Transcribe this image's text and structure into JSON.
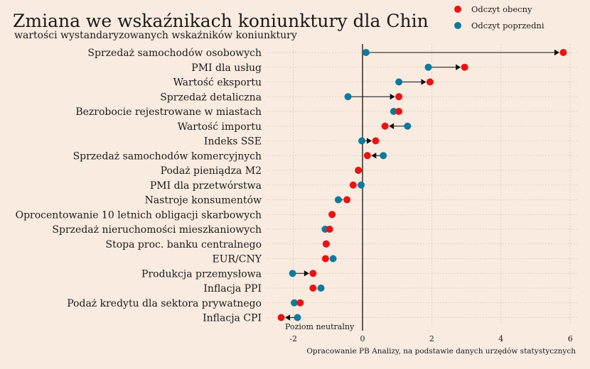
{
  "chart_data": {
    "type": "dumbbell",
    "title": "Zmiana we wskaźnikach koniunktury dla Chin",
    "subtitle": "wartości wystandaryzowanych wskaźników koniunktury",
    "source": "Opracowanie PB Analizy, na podstawie danych urzędów statystycznych",
    "neutral_label": "Poziom neutralny",
    "xlim": [
      -2.4,
      6.2
    ],
    "xticks": [
      -2,
      0,
      2,
      4,
      6
    ],
    "grid": true,
    "legend_position": "top-right",
    "series": [
      {
        "name": "Odczyt obecny",
        "color": "#ee1111"
      },
      {
        "name": "Odczyt poprzedni",
        "color": "#0e7a9e"
      }
    ],
    "categories": [
      "Sprzedaż samochodów osobowych",
      "PMI dla usług",
      "Wartość eksportu",
      "Sprzedaż detaliczna",
      "Bezrobocie rejestrowane w miastach",
      "Wartość importu",
      "Indeks SSE",
      "Sprzedaż samochodów komercyjnych",
      "Podaż pieniądza M2",
      "PMI dla przetwórstwa",
      "Nastroje konsumentów",
      "Oprocentowanie 10 letnich obligacji skarbowych",
      "Sprzedaż nieruchomości mieszkaniowych",
      "Stopa proc. banku centralnego",
      "EUR/CNY",
      "Produkcja przemysłowa",
      "Inflacja PPI",
      "Podaż kredytu dla sektora prywatnego",
      "Inflacja CPI"
    ],
    "current": [
      5.8,
      2.95,
      1.95,
      1.05,
      1.05,
      0.65,
      0.38,
      0.14,
      -0.12,
      -0.27,
      -0.45,
      -0.88,
      -0.95,
      -1.05,
      -1.07,
      -1.43,
      -1.43,
      -1.8,
      -2.35
    ],
    "previous": [
      0.1,
      1.9,
      1.05,
      -0.42,
      0.9,
      1.3,
      -0.02,
      0.6,
      -0.12,
      -0.04,
      -0.7,
      -0.88,
      -1.08,
      -1.05,
      -0.85,
      -2.02,
      -1.2,
      -1.97,
      -1.88
    ]
  }
}
